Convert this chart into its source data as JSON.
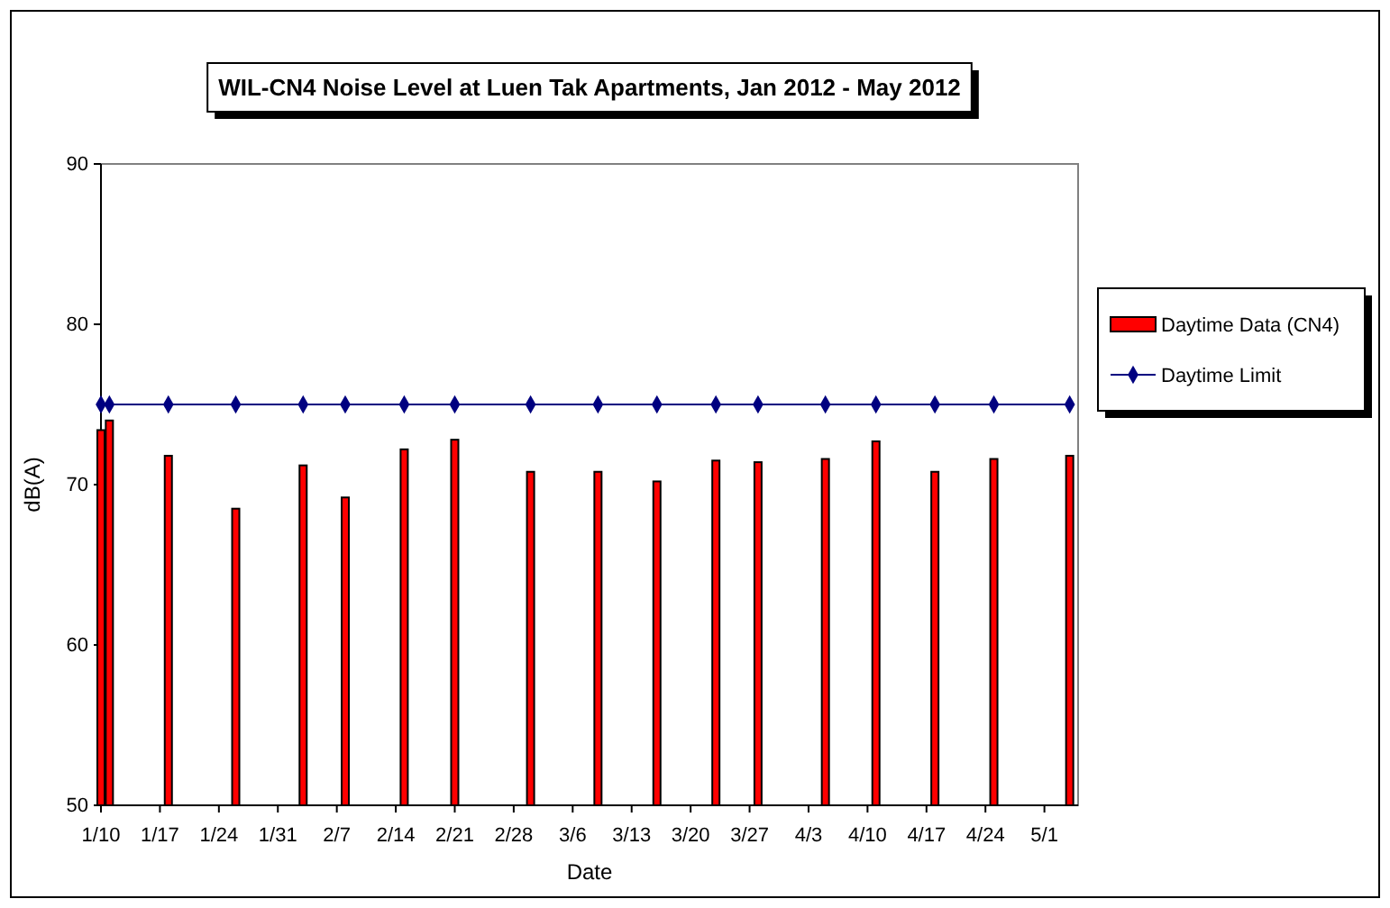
{
  "chart_data": {
    "type": "bar",
    "title": "WIL-CN4 Noise Level at Luen Tak Apartments, Jan 2012 - May 2012",
    "xlabel": "Date",
    "ylabel": "dB(A)",
    "x": [
      "2012-01-10",
      "2012-01-11",
      "2012-01-18",
      "2012-01-26",
      "2012-02-03",
      "2012-02-08",
      "2012-02-15",
      "2012-02-21",
      "2012-03-01",
      "2012-03-09",
      "2012-03-16",
      "2012-03-23",
      "2012-03-28",
      "2012-04-05",
      "2012-04-11",
      "2012-04-18",
      "2012-04-25",
      "2012-05-04"
    ],
    "series": [
      {
        "name": "Daytime Data (CN4)",
        "color": "#ff0000",
        "values": [
          73.4,
          74.0,
          71.8,
          68.5,
          71.2,
          69.2,
          72.2,
          72.8,
          70.8,
          70.8,
          70.2,
          71.5,
          71.4,
          71.6,
          72.7,
          70.8,
          71.6,
          71.8
        ]
      },
      {
        "name": "Daytime Limit",
        "type": "line",
        "color": "#000080",
        "marker": "diamond",
        "values": [
          75,
          75,
          75,
          75,
          75,
          75,
          75,
          75,
          75,
          75,
          75,
          75,
          75,
          75,
          75,
          75,
          75,
          75
        ]
      }
    ],
    "xlim": [
      "2012-01-10",
      "2012-05-05"
    ],
    "xticks": [
      {
        "value": "2012-01-10",
        "label": "1/10"
      },
      {
        "value": "2012-01-17",
        "label": "1/17"
      },
      {
        "value": "2012-01-24",
        "label": "1/24"
      },
      {
        "value": "2012-01-31",
        "label": "1/31"
      },
      {
        "value": "2012-02-07",
        "label": "2/7"
      },
      {
        "value": "2012-02-14",
        "label": "2/14"
      },
      {
        "value": "2012-02-21",
        "label": "2/21"
      },
      {
        "value": "2012-02-28",
        "label": "2/28"
      },
      {
        "value": "2012-03-06",
        "label": "3/6"
      },
      {
        "value": "2012-03-13",
        "label": "3/13"
      },
      {
        "value": "2012-03-20",
        "label": "3/20"
      },
      {
        "value": "2012-03-27",
        "label": "3/27"
      },
      {
        "value": "2012-04-03",
        "label": "4/3"
      },
      {
        "value": "2012-04-10",
        "label": "4/10"
      },
      {
        "value": "2012-04-17",
        "label": "4/17"
      },
      {
        "value": "2012-04-24",
        "label": "4/24"
      },
      {
        "value": "2012-05-01",
        "label": "5/1"
      }
    ],
    "ylim": [
      50,
      90
    ],
    "yticks": [
      50,
      60,
      70,
      80,
      90
    ],
    "grid": false,
    "legend": "right"
  }
}
